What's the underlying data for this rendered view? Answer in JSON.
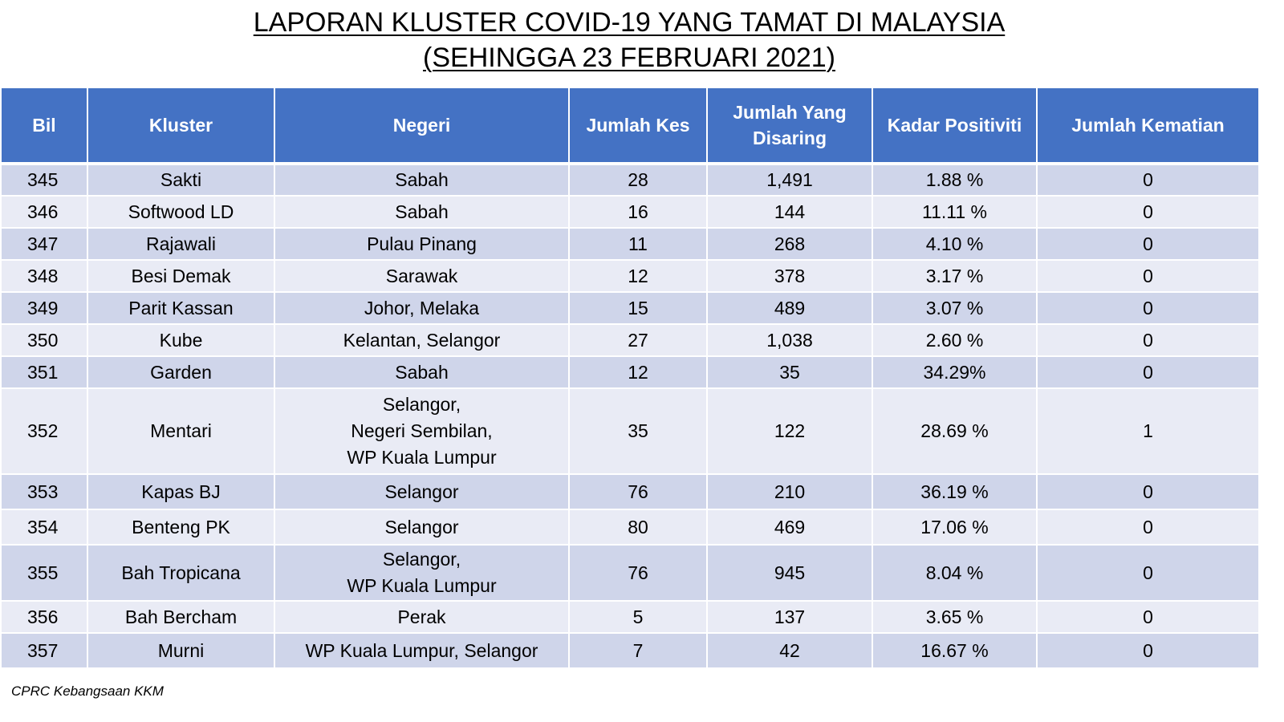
{
  "title": {
    "line1": "LAPORAN KLUSTER COVID-19 YANG TAMAT DI MALAYSIA",
    "line2": "(SEHINGGA 23 FEBRUARI 2021)"
  },
  "table": {
    "headers": [
      "Bil",
      "Kluster",
      "Negeri",
      "Jumlah Kes",
      "Jumlah Yang Disaring",
      "Kadar Positiviti",
      "Jumlah Kematian"
    ],
    "rows": [
      [
        "345",
        "Sakti",
        "Sabah",
        "28",
        "1,491",
        "1.88 %",
        "0"
      ],
      [
        "346",
        "Softwood LD",
        "Sabah",
        "16",
        "144",
        "11.11 %",
        "0"
      ],
      [
        "347",
        "Rajawali",
        "Pulau Pinang",
        "11",
        "268",
        "4.10 %",
        "0"
      ],
      [
        "348",
        "Besi Demak",
        "Sarawak",
        "12",
        "378",
        "3.17 %",
        "0"
      ],
      [
        "349",
        "Parit Kassan",
        "Johor, Melaka",
        "15",
        "489",
        "3.07 %",
        "0"
      ],
      [
        "350",
        "Kube",
        "Kelantan, Selangor",
        "27",
        "1,038",
        "2.60 %",
        "0"
      ],
      [
        "351",
        "Garden",
        "Sabah",
        "12",
        "35",
        "34.29%",
        "0"
      ],
      [
        "352",
        "Mentari",
        "Selangor,\nNegeri Sembilan,\nWP Kuala Lumpur",
        "35",
        "122",
        "28.69 %",
        "1"
      ],
      [
        "353",
        "Kapas BJ",
        "Selangor",
        "76",
        "210",
        "36.19 %",
        "0"
      ],
      [
        "354",
        "Benteng PK",
        "Selangor",
        "80",
        "469",
        "17.06 %",
        "0"
      ],
      [
        "355",
        "Bah Tropicana",
        "Selangor,\nWP Kuala Lumpur",
        "76",
        "945",
        "8.04 %",
        "0"
      ],
      [
        "356",
        "Bah Bercham",
        "Perak",
        "5",
        "137",
        "3.65 %",
        "0"
      ],
      [
        "357",
        "Murni",
        "WP Kuala Lumpur, Selangor",
        "7",
        "42",
        "16.67 %",
        "0"
      ]
    ]
  },
  "footer": "CPRC Kebangsaan KKM"
}
